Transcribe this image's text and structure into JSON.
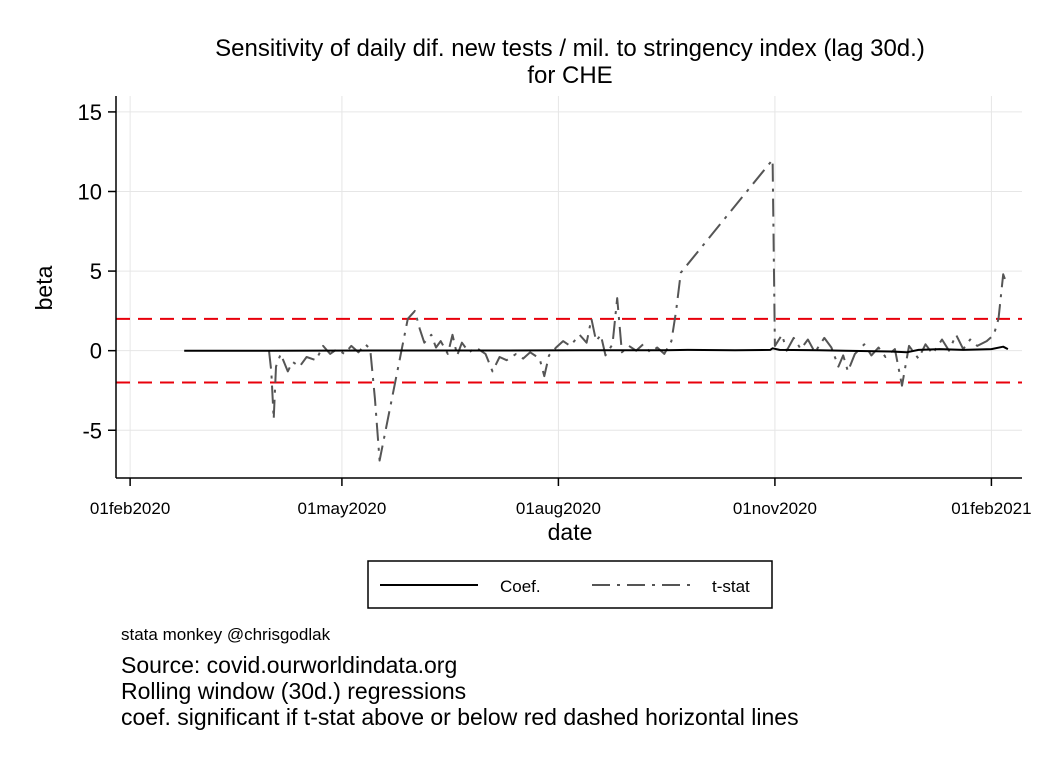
{
  "chart_data": {
    "type": "line",
    "title": "Sensitivity of daily dif. new tests / mil. to stringency index (lag 30d.)",
    "subtitle": "for CHE",
    "xlabel": "date",
    "ylabel": "beta",
    "xlim": [
      "2020-01-26",
      "2021-02-14"
    ],
    "ylim": [
      -8,
      16
    ],
    "x_ticks": [
      "01feb2020",
      "01may2020",
      "01aug2020",
      "01nov2020",
      "01feb2021"
    ],
    "y_ticks": [
      -5,
      0,
      5,
      10,
      15
    ],
    "grid": true,
    "legend_position": "bottom",
    "reference_lines": {
      "y": [
        2,
        -2
      ],
      "color": "#e8000b",
      "style": "dashed"
    },
    "series": [
      {
        "name": "Coef.",
        "style": "solid",
        "color": "#000000",
        "points": [
          [
            "2020-02-24",
            0
          ],
          [
            "2020-03-31",
            0
          ],
          [
            "2020-05-15",
            0.01
          ],
          [
            "2020-06-30",
            0.01
          ],
          [
            "2020-08-10",
            0.02
          ],
          [
            "2020-09-15",
            0.03
          ],
          [
            "2020-09-25",
            0.05
          ],
          [
            "2020-10-15",
            0.03
          ],
          [
            "2020-10-30",
            0.05
          ],
          [
            "2020-10-31",
            0.15
          ],
          [
            "2020-11-03",
            0.05
          ],
          [
            "2020-11-20",
            0.03
          ],
          [
            "2020-12-01",
            0.0
          ],
          [
            "2020-12-20",
            -0.05
          ],
          [
            "2020-12-27",
            -0.1
          ],
          [
            "2021-01-01",
            0.05
          ],
          [
            "2021-01-10",
            0.1
          ],
          [
            "2021-01-20",
            0.05
          ],
          [
            "2021-02-01",
            0.1
          ],
          [
            "2021-02-06",
            0.25
          ],
          [
            "2021-02-08",
            0.1
          ]
        ]
      },
      {
        "name": "t-stat",
        "style": "dashdot",
        "color": "#555555",
        "points": [
          [
            "2020-03-31",
            0
          ],
          [
            "2020-04-01",
            -1.3
          ],
          [
            "2020-04-02",
            -4.3
          ],
          [
            "2020-04-03",
            -1.0
          ],
          [
            "2020-04-05",
            -0.2
          ],
          [
            "2020-04-08",
            -1.3
          ],
          [
            "2020-04-10",
            -0.7
          ],
          [
            "2020-04-13",
            -1.0
          ],
          [
            "2020-04-16",
            -0.4
          ],
          [
            "2020-04-20",
            -0.6
          ],
          [
            "2020-04-23",
            0.3
          ],
          [
            "2020-04-26",
            -0.2
          ],
          [
            "2020-04-29",
            0.1
          ],
          [
            "2020-05-02",
            -0.2
          ],
          [
            "2020-05-05",
            0.3
          ],
          [
            "2020-05-08",
            -0.1
          ],
          [
            "2020-05-11",
            0.4
          ],
          [
            "2020-05-13",
            0.1
          ],
          [
            "2020-05-15",
            -3.0
          ],
          [
            "2020-05-17",
            -6.9
          ],
          [
            "2020-05-29",
            2.0
          ],
          [
            "2020-06-01",
            2.5
          ],
          [
            "2020-06-03",
            1.4
          ],
          [
            "2020-06-05",
            0.5
          ],
          [
            "2020-06-08",
            1.0
          ],
          [
            "2020-06-10",
            0.2
          ],
          [
            "2020-06-12",
            0.6
          ],
          [
            "2020-06-15",
            -0.2
          ],
          [
            "2020-06-17",
            1.0
          ],
          [
            "2020-06-19",
            -0.3
          ],
          [
            "2020-06-21",
            0.5
          ],
          [
            "2020-06-24",
            -0.1
          ],
          [
            "2020-06-27",
            0.2
          ],
          [
            "2020-07-01",
            -0.2
          ],
          [
            "2020-07-04",
            -1.3
          ],
          [
            "2020-07-07",
            -0.4
          ],
          [
            "2020-07-10",
            -0.6
          ],
          [
            "2020-07-14",
            -0.2
          ],
          [
            "2020-07-17",
            -0.5
          ],
          [
            "2020-07-20",
            -0.1
          ],
          [
            "2020-07-24",
            -0.5
          ],
          [
            "2020-07-26",
            -1.6
          ],
          [
            "2020-07-28",
            -0.3
          ],
          [
            "2020-07-31",
            0.2
          ],
          [
            "2020-08-03",
            0.6
          ],
          [
            "2020-08-06",
            0.3
          ],
          [
            "2020-08-10",
            1.0
          ],
          [
            "2020-08-13",
            0.5
          ],
          [
            "2020-08-15",
            2.0
          ],
          [
            "2020-08-17",
            0.6
          ],
          [
            "2020-08-19",
            1.0
          ],
          [
            "2020-08-21",
            -0.3
          ],
          [
            "2020-08-24",
            0.4
          ],
          [
            "2020-08-26",
            3.3
          ],
          [
            "2020-08-28",
            -0.1
          ],
          [
            "2020-08-31",
            0.3
          ],
          [
            "2020-09-03",
            0.0
          ],
          [
            "2020-09-06",
            0.4
          ],
          [
            "2020-09-09",
            -0.1
          ],
          [
            "2020-09-12",
            0.2
          ],
          [
            "2020-09-15",
            -0.2
          ],
          [
            "2020-09-18",
            0.6
          ],
          [
            "2020-09-20",
            2.5
          ],
          [
            "2020-09-22",
            4.9
          ],
          [
            "2020-10-31",
            12.0
          ],
          [
            "2020-11-01",
            0.3
          ],
          [
            "2020-11-04",
            1.0
          ],
          [
            "2020-11-06",
            0.0
          ],
          [
            "2020-11-09",
            0.8
          ],
          [
            "2020-11-12",
            0.1
          ],
          [
            "2020-11-15",
            0.7
          ],
          [
            "2020-11-18",
            -0.1
          ],
          [
            "2020-11-22",
            0.8
          ],
          [
            "2020-11-25",
            0.2
          ],
          [
            "2020-11-28",
            -1.0
          ],
          [
            "2020-11-30",
            -0.3
          ],
          [
            "2020-12-02",
            -1.3
          ],
          [
            "2020-12-05",
            -0.2
          ],
          [
            "2020-12-09",
            0.4
          ],
          [
            "2020-12-12",
            -0.3
          ],
          [
            "2020-12-15",
            0.2
          ],
          [
            "2020-12-18",
            -0.4
          ],
          [
            "2020-12-22",
            0.1
          ],
          [
            "2020-12-25",
            -2.2
          ],
          [
            "2020-12-28",
            0.3
          ],
          [
            "2021-01-01",
            -0.5
          ],
          [
            "2021-01-04",
            0.4
          ],
          [
            "2021-01-07",
            -0.2
          ],
          [
            "2021-01-11",
            0.7
          ],
          [
            "2021-01-14",
            0.0
          ],
          [
            "2021-01-17",
            1.0
          ],
          [
            "2021-01-20",
            0.1
          ],
          [
            "2021-01-23",
            0.7
          ],
          [
            "2021-01-26",
            0.3
          ],
          [
            "2021-01-30",
            0.6
          ],
          [
            "2021-02-02",
            1.0
          ],
          [
            "2021-02-04",
            2.0
          ],
          [
            "2021-02-06",
            4.8
          ],
          [
            "2021-02-07",
            4.4
          ]
        ]
      }
    ]
  },
  "credit": "stata monkey @chrisgodlak",
  "notes": [
    "Source: covid.ourworldindata.org",
    "Rolling window (30d.) regressions",
    "coef. significant if t-stat above or below red dashed horizontal lines"
  ]
}
